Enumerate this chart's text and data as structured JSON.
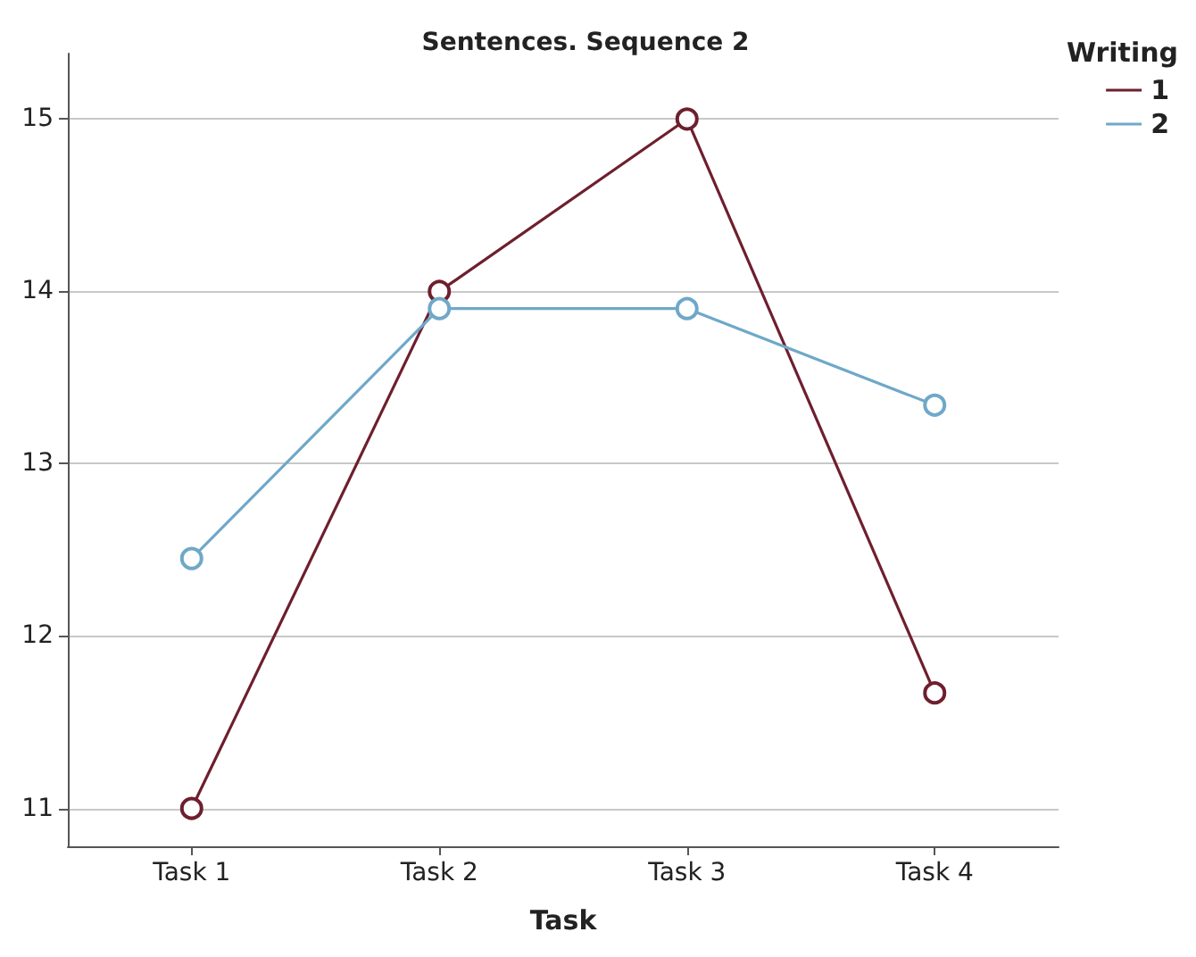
{
  "chart_data": {
    "type": "line",
    "title": "Sentences. Sequence 2",
    "xlabel": "Task",
    "legend_title": "Writing",
    "categories": [
      "Task 1",
      "Task 2",
      "Task 3",
      "Task 4"
    ],
    "series": [
      {
        "name": "1",
        "color": "#6e1f2e",
        "values": [
          11,
          14,
          15,
          11.67
        ]
      },
      {
        "name": "2",
        "color": "#6fa8c8",
        "values": [
          12.45,
          13.9,
          13.9,
          13.34
        ]
      }
    ],
    "ylim": [
      10.78,
      15.38
    ],
    "yticks": [
      11,
      12,
      13,
      14,
      15
    ],
    "grid": "y",
    "legend": "top right",
    "marker": "circle",
    "line_style": "solid"
  }
}
